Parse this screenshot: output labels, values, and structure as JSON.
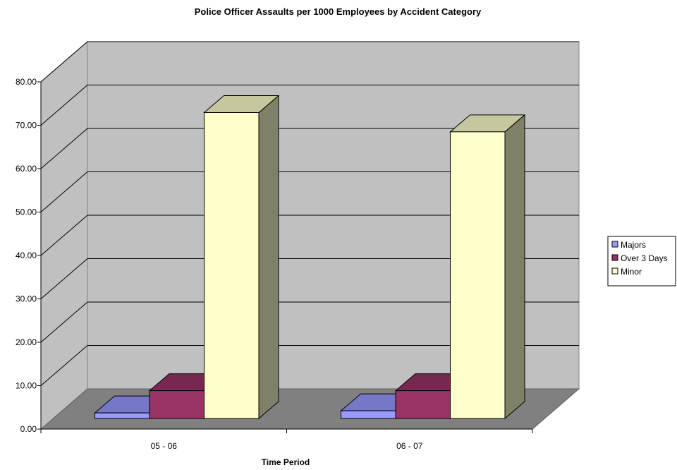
{
  "chart_data": {
    "type": "bar",
    "title": "Police Officer Assaults per 1000 Employees by Accident Category",
    "xlabel": "Time Period",
    "ylabel": "",
    "categories": [
      "05 - 06",
      "06 - 07"
    ],
    "ylim": [
      0,
      80
    ],
    "ytick_step": 10,
    "ytick_labels": [
      "0.00",
      "10.00",
      "20.00",
      "30.00",
      "40.00",
      "50.00",
      "60.00",
      "70.00",
      "80.00"
    ],
    "grid": true,
    "legend_position": "right",
    "style": "3d-column",
    "series": [
      {
        "name": "Majors",
        "values": [
          1.3,
          1.8
        ],
        "color": "#9999FF"
      },
      {
        "name": "Over 3 Days",
        "values": [
          6.5,
          6.5
        ],
        "color": "#993366"
      },
      {
        "name": "Minor",
        "values": [
          71.5,
          67.0
        ],
        "color": "#FFFFCC"
      }
    ]
  }
}
